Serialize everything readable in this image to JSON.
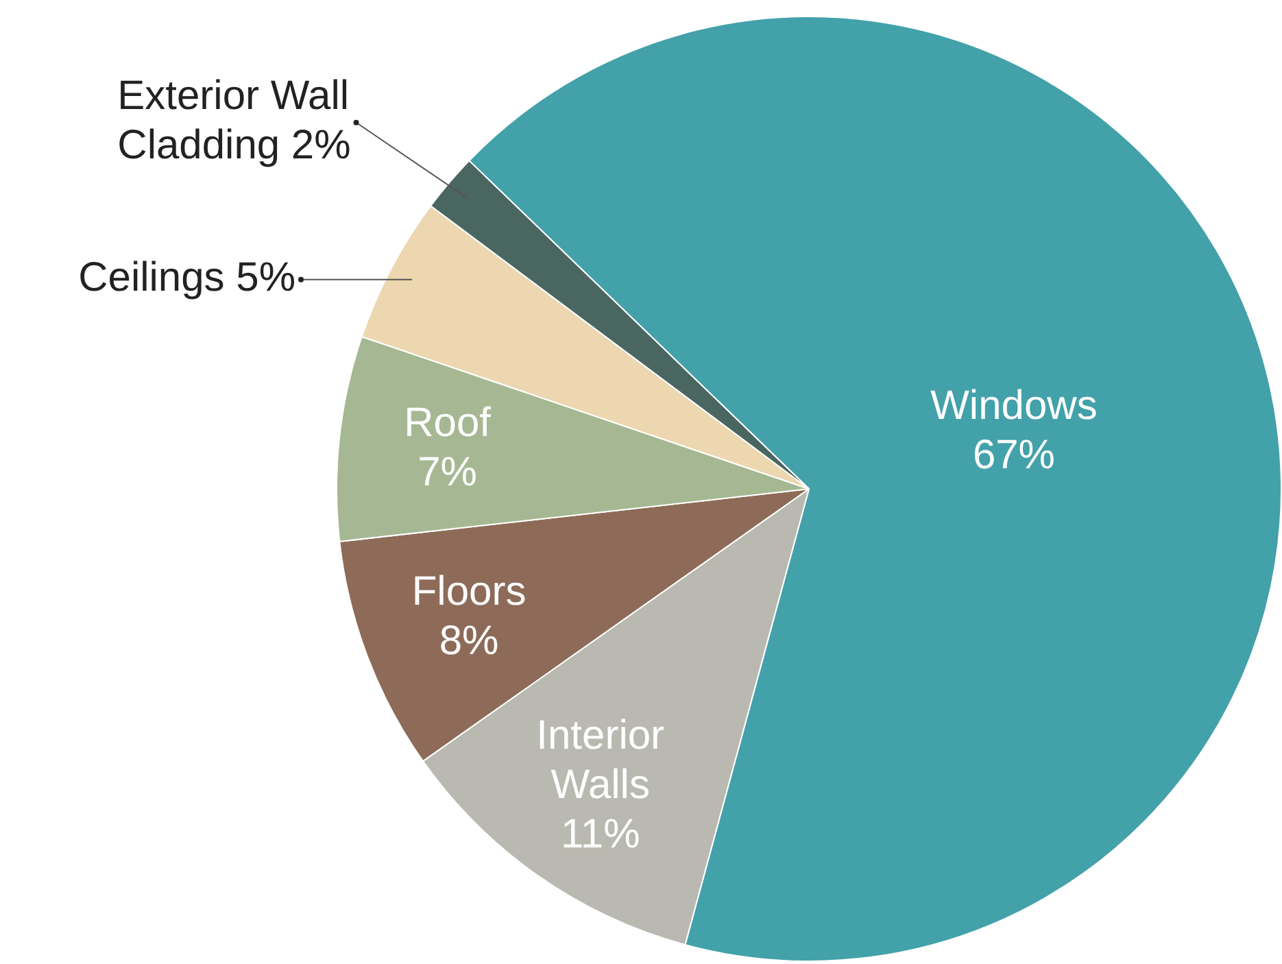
{
  "chart_data": {
    "type": "pie",
    "categories": [
      "Windows",
      "Interior Walls",
      "Floors",
      "Roof",
      "Ceilings",
      "Exterior Wall Cladding"
    ],
    "values": [
      67,
      11,
      8,
      7,
      5,
      2
    ],
    "value_labels": [
      "67%",
      "11%",
      "8%",
      "7%",
      "5%",
      "2%"
    ],
    "colors": [
      "#43a1aa",
      "#b9b9b1",
      "#8d6b58",
      "#a5b893",
      "#ecd7b0",
      "#4a6660"
    ],
    "legend": false
  }
}
